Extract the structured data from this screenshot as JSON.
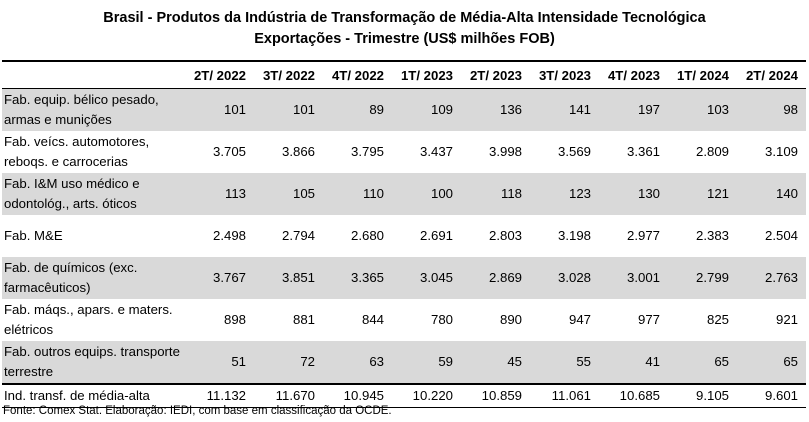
{
  "title_line1": "Brasil - Produtos da Indústria de Transformação de Média-Alta Intensidade Tecnológica",
  "title_line2": "Exportações - Trimestre (US$ milhões FOB)",
  "columns": [
    "",
    "2T/ 2022",
    "3T/ 2022",
    "4T/ 2022",
    "1T/ 2023",
    "2T/ 2023",
    "3T/ 2023",
    "4T/ 2023",
    "1T/ 2024",
    "2T/ 2024"
  ],
  "rows": [
    {
      "label": "Fab. equip. bélico pesado, armas e munições",
      "values": [
        "101",
        "101",
        "89",
        "109",
        "136",
        "141",
        "197",
        "103",
        "98"
      ]
    },
    {
      "label": "Fab. veícs. automotores, reboqs. e carrocerias",
      "values": [
        "3.705",
        "3.866",
        "3.795",
        "3.437",
        "3.998",
        "3.569",
        "3.361",
        "2.809",
        "3.109"
      ]
    },
    {
      "label": "Fab. I&M uso médico e odontológ., arts. óticos",
      "values": [
        "113",
        "105",
        "110",
        "100",
        "118",
        "123",
        "130",
        "121",
        "140"
      ]
    },
    {
      "label": "Fab. M&E",
      "values": [
        "2.498",
        "2.794",
        "2.680",
        "2.691",
        "2.803",
        "3.198",
        "2.977",
        "2.383",
        "2.504"
      ]
    },
    {
      "label": "Fab. de químicos (exc. farmacêuticos)",
      "values": [
        "3.767",
        "3.851",
        "3.365",
        "3.045",
        "2.869",
        "3.028",
        "3.001",
        "2.799",
        "2.763"
      ]
    },
    {
      "label": "Fab. máqs., apars. e maters. elétricos",
      "values": [
        "898",
        "881",
        "844",
        "780",
        "890",
        "947",
        "977",
        "825",
        "921"
      ]
    },
    {
      "label": "Fab. outros equips. transporte terrestre",
      "values": [
        "51",
        "72",
        "63",
        "59",
        "45",
        "55",
        "41",
        "65",
        "65"
      ]
    }
  ],
  "total": {
    "label": "Ind. transf. de média-alta",
    "values": [
      "11.132",
      "11.670",
      "10.945",
      "10.220",
      "10.859",
      "11.061",
      "10.685",
      "9.105",
      "9.601"
    ]
  },
  "source": "Fonte: Comex Stat. Elaboração: IEDI, com base em classificação da OCDE."
}
